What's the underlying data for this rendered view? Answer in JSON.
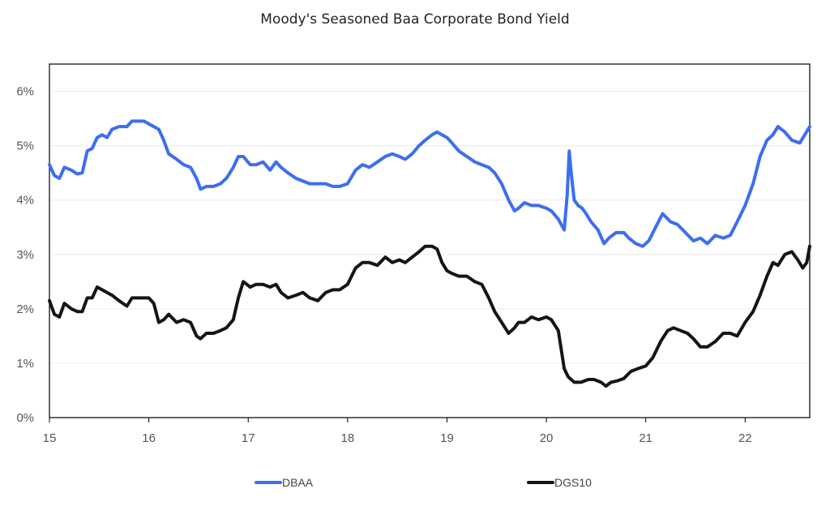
{
  "chart_data": {
    "type": "line",
    "title": "Moody's Seasoned Baa Corporate Bond Yield",
    "xlabel": "",
    "ylabel": "",
    "xlim": [
      15,
      22.65
    ],
    "ylim": [
      0,
      6.5
    ],
    "x_ticks": [
      15,
      16,
      17,
      18,
      19,
      20,
      21,
      22
    ],
    "x_tick_labels": [
      "15",
      "16",
      "17",
      "18",
      "19",
      "20",
      "21",
      "22"
    ],
    "y_ticks": [
      0,
      1,
      2,
      3,
      4,
      5,
      6
    ],
    "y_tick_labels": [
      "0%",
      "1%",
      "2%",
      "3%",
      "4%",
      "5%",
      "6%"
    ],
    "grid": "horizontal",
    "legend": "bottom",
    "series": [
      {
        "name": "DBAA",
        "color": "#3d6ef0",
        "points": [
          [
            15.0,
            4.65
          ],
          [
            15.05,
            4.45
          ],
          [
            15.1,
            4.4
          ],
          [
            15.15,
            4.6
          ],
          [
            15.22,
            4.55
          ],
          [
            15.28,
            4.48
          ],
          [
            15.33,
            4.5
          ],
          [
            15.38,
            4.9
          ],
          [
            15.43,
            4.95
          ],
          [
            15.48,
            5.15
          ],
          [
            15.53,
            5.2
          ],
          [
            15.58,
            5.15
          ],
          [
            15.63,
            5.3
          ],
          [
            15.7,
            5.35
          ],
          [
            15.78,
            5.35
          ],
          [
            15.83,
            5.45
          ],
          [
            15.9,
            5.45
          ],
          [
            15.95,
            5.45
          ],
          [
            16.0,
            5.4
          ],
          [
            16.05,
            5.35
          ],
          [
            16.1,
            5.3
          ],
          [
            16.15,
            5.1
          ],
          [
            16.2,
            4.85
          ],
          [
            16.28,
            4.75
          ],
          [
            16.35,
            4.65
          ],
          [
            16.42,
            4.6
          ],
          [
            16.48,
            4.4
          ],
          [
            16.52,
            4.2
          ],
          [
            16.58,
            4.25
          ],
          [
            16.65,
            4.25
          ],
          [
            16.72,
            4.3
          ],
          [
            16.78,
            4.4
          ],
          [
            16.85,
            4.6
          ],
          [
            16.9,
            4.8
          ],
          [
            16.95,
            4.8
          ],
          [
            17.02,
            4.65
          ],
          [
            17.08,
            4.65
          ],
          [
            17.15,
            4.7
          ],
          [
            17.22,
            4.55
          ],
          [
            17.28,
            4.7
          ],
          [
            17.33,
            4.6
          ],
          [
            17.4,
            4.5
          ],
          [
            17.48,
            4.4
          ],
          [
            17.55,
            4.35
          ],
          [
            17.62,
            4.3
          ],
          [
            17.7,
            4.3
          ],
          [
            17.78,
            4.3
          ],
          [
            17.85,
            4.25
          ],
          [
            17.92,
            4.25
          ],
          [
            18.0,
            4.3
          ],
          [
            18.08,
            4.55
          ],
          [
            18.15,
            4.65
          ],
          [
            18.22,
            4.6
          ],
          [
            18.3,
            4.7
          ],
          [
            18.38,
            4.8
          ],
          [
            18.45,
            4.85
          ],
          [
            18.52,
            4.8
          ],
          [
            18.58,
            4.75
          ],
          [
            18.65,
            4.85
          ],
          [
            18.72,
            5.0
          ],
          [
            18.78,
            5.1
          ],
          [
            18.85,
            5.2
          ],
          [
            18.9,
            5.25
          ],
          [
            18.95,
            5.2
          ],
          [
            19.0,
            5.15
          ],
          [
            19.05,
            5.05
          ],
          [
            19.12,
            4.9
          ],
          [
            19.2,
            4.8
          ],
          [
            19.28,
            4.7
          ],
          [
            19.35,
            4.65
          ],
          [
            19.42,
            4.6
          ],
          [
            19.48,
            4.5
          ],
          [
            19.55,
            4.3
          ],
          [
            19.62,
            4.0
          ],
          [
            19.68,
            3.8
          ],
          [
            19.72,
            3.85
          ],
          [
            19.78,
            3.95
          ],
          [
            19.85,
            3.9
          ],
          [
            19.92,
            3.9
          ],
          [
            20.0,
            3.85
          ],
          [
            20.05,
            3.8
          ],
          [
            20.12,
            3.65
          ],
          [
            20.18,
            3.45
          ],
          [
            20.21,
            4.1
          ],
          [
            20.23,
            4.9
          ],
          [
            20.25,
            4.5
          ],
          [
            20.28,
            4.0
          ],
          [
            20.32,
            3.9
          ],
          [
            20.36,
            3.85
          ],
          [
            20.4,
            3.75
          ],
          [
            20.45,
            3.6
          ],
          [
            20.52,
            3.45
          ],
          [
            20.58,
            3.2
          ],
          [
            20.63,
            3.3
          ],
          [
            20.7,
            3.4
          ],
          [
            20.78,
            3.4
          ],
          [
            20.83,
            3.3
          ],
          [
            20.9,
            3.2
          ],
          [
            20.97,
            3.15
          ],
          [
            21.03,
            3.25
          ],
          [
            21.1,
            3.5
          ],
          [
            21.17,
            3.75
          ],
          [
            21.25,
            3.6
          ],
          [
            21.32,
            3.55
          ],
          [
            21.4,
            3.4
          ],
          [
            21.48,
            3.25
          ],
          [
            21.55,
            3.3
          ],
          [
            21.62,
            3.2
          ],
          [
            21.7,
            3.35
          ],
          [
            21.78,
            3.3
          ],
          [
            21.85,
            3.35
          ],
          [
            21.92,
            3.6
          ],
          [
            22.0,
            3.9
          ],
          [
            22.08,
            4.3
          ],
          [
            22.15,
            4.8
          ],
          [
            22.22,
            5.1
          ],
          [
            22.28,
            5.2
          ],
          [
            22.33,
            5.35
          ],
          [
            22.4,
            5.25
          ],
          [
            22.47,
            5.1
          ],
          [
            22.55,
            5.05
          ],
          [
            22.6,
            5.2
          ],
          [
            22.65,
            5.35
          ]
        ]
      },
      {
        "name": "DGS10",
        "color": "#151515",
        "points": [
          [
            15.0,
            2.15
          ],
          [
            15.05,
            1.9
          ],
          [
            15.1,
            1.85
          ],
          [
            15.15,
            2.1
          ],
          [
            15.22,
            2.0
          ],
          [
            15.28,
            1.95
          ],
          [
            15.33,
            1.95
          ],
          [
            15.38,
            2.2
          ],
          [
            15.43,
            2.2
          ],
          [
            15.48,
            2.4
          ],
          [
            15.53,
            2.35
          ],
          [
            15.58,
            2.3
          ],
          [
            15.63,
            2.25
          ],
          [
            15.7,
            2.15
          ],
          [
            15.78,
            2.05
          ],
          [
            15.83,
            2.2
          ],
          [
            15.9,
            2.2
          ],
          [
            15.95,
            2.2
          ],
          [
            16.0,
            2.2
          ],
          [
            16.05,
            2.1
          ],
          [
            16.1,
            1.75
          ],
          [
            16.15,
            1.8
          ],
          [
            16.2,
            1.9
          ],
          [
            16.28,
            1.75
          ],
          [
            16.35,
            1.8
          ],
          [
            16.42,
            1.75
          ],
          [
            16.48,
            1.5
          ],
          [
            16.52,
            1.45
          ],
          [
            16.58,
            1.55
          ],
          [
            16.65,
            1.55
          ],
          [
            16.72,
            1.6
          ],
          [
            16.78,
            1.65
          ],
          [
            16.85,
            1.8
          ],
          [
            16.9,
            2.2
          ],
          [
            16.95,
            2.5
          ],
          [
            17.02,
            2.4
          ],
          [
            17.08,
            2.45
          ],
          [
            17.15,
            2.45
          ],
          [
            17.22,
            2.4
          ],
          [
            17.28,
            2.45
          ],
          [
            17.33,
            2.3
          ],
          [
            17.4,
            2.2
          ],
          [
            17.48,
            2.25
          ],
          [
            17.55,
            2.3
          ],
          [
            17.62,
            2.2
          ],
          [
            17.7,
            2.15
          ],
          [
            17.78,
            2.3
          ],
          [
            17.85,
            2.35
          ],
          [
            17.92,
            2.35
          ],
          [
            18.0,
            2.45
          ],
          [
            18.08,
            2.75
          ],
          [
            18.15,
            2.85
          ],
          [
            18.22,
            2.85
          ],
          [
            18.3,
            2.8
          ],
          [
            18.38,
            2.95
          ],
          [
            18.45,
            2.85
          ],
          [
            18.52,
            2.9
          ],
          [
            18.58,
            2.85
          ],
          [
            18.65,
            2.95
          ],
          [
            18.72,
            3.05
          ],
          [
            18.78,
            3.15
          ],
          [
            18.85,
            3.15
          ],
          [
            18.9,
            3.1
          ],
          [
            18.95,
            2.85
          ],
          [
            19.0,
            2.7
          ],
          [
            19.05,
            2.65
          ],
          [
            19.12,
            2.6
          ],
          [
            19.2,
            2.6
          ],
          [
            19.28,
            2.5
          ],
          [
            19.35,
            2.45
          ],
          [
            19.42,
            2.2
          ],
          [
            19.48,
            1.95
          ],
          [
            19.55,
            1.75
          ],
          [
            19.62,
            1.55
          ],
          [
            19.68,
            1.65
          ],
          [
            19.72,
            1.75
          ],
          [
            19.78,
            1.75
          ],
          [
            19.85,
            1.85
          ],
          [
            19.92,
            1.8
          ],
          [
            20.0,
            1.85
          ],
          [
            20.05,
            1.8
          ],
          [
            20.12,
            1.6
          ],
          [
            20.18,
            0.9
          ],
          [
            20.22,
            0.75
          ],
          [
            20.28,
            0.65
          ],
          [
            20.35,
            0.65
          ],
          [
            20.42,
            0.7
          ],
          [
            20.48,
            0.7
          ],
          [
            20.55,
            0.65
          ],
          [
            20.6,
            0.58
          ],
          [
            20.65,
            0.65
          ],
          [
            20.72,
            0.68
          ],
          [
            20.78,
            0.72
          ],
          [
            20.85,
            0.85
          ],
          [
            20.92,
            0.9
          ],
          [
            21.0,
            0.95
          ],
          [
            21.07,
            1.1
          ],
          [
            21.15,
            1.4
          ],
          [
            21.22,
            1.6
          ],
          [
            21.28,
            1.65
          ],
          [
            21.35,
            1.6
          ],
          [
            21.42,
            1.55
          ],
          [
            21.48,
            1.45
          ],
          [
            21.55,
            1.3
          ],
          [
            21.62,
            1.3
          ],
          [
            21.7,
            1.4
          ],
          [
            21.78,
            1.55
          ],
          [
            21.85,
            1.55
          ],
          [
            21.92,
            1.5
          ],
          [
            22.0,
            1.75
          ],
          [
            22.08,
            1.95
          ],
          [
            22.15,
            2.25
          ],
          [
            22.22,
            2.6
          ],
          [
            22.28,
            2.85
          ],
          [
            22.33,
            2.8
          ],
          [
            22.4,
            3.0
          ],
          [
            22.47,
            3.05
          ],
          [
            22.53,
            2.9
          ],
          [
            22.58,
            2.75
          ],
          [
            22.62,
            2.85
          ],
          [
            22.65,
            3.15
          ]
        ]
      }
    ]
  }
}
